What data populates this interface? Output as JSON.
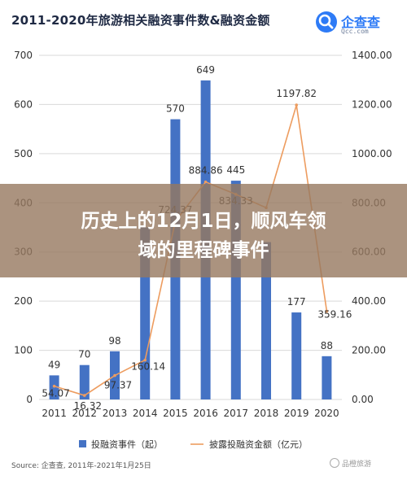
{
  "header": {
    "title": "2011-2020年旅游相关融资事件数&融资金额",
    "brand_name": "企查查",
    "brand_site": "Qcc.com"
  },
  "banner": {
    "line1": "历史上的12月1日，顺风车领",
    "line2": "域的里程碑事件"
  },
  "footer": {
    "source": "Source: 企查查, 2011年-2021年1月25日",
    "watermark": "品橙旅游"
  },
  "colors": {
    "bar": "#4472c4",
    "line": "#ed9c5f",
    "grid": "#d9d9d9",
    "text": "#333333"
  },
  "chart_data": {
    "type": "bar",
    "title": "2011-2020年旅游相关融资事件数&融资金额",
    "categories": [
      "2011",
      "2012",
      "2013",
      "2014",
      "2015",
      "2016",
      "2017",
      "2018",
      "2019",
      "2020"
    ],
    "ylim": [
      0,
      700
    ],
    "y_ticks": [
      "0",
      "100",
      "200",
      "300",
      "400",
      "500",
      "600",
      "700"
    ],
    "y2lim": [
      0,
      1400
    ],
    "y2_ticks": [
      "0.00",
      "200.00",
      "400.00",
      "600.00",
      "800.00",
      "1000.00",
      "1200.00",
      "1400.00"
    ],
    "grid": true,
    "legend_position": "bottom",
    "series": [
      {
        "name": "投融资事件（起）",
        "type": "bar",
        "axis": "left",
        "values": [
          49,
          70,
          98,
          350,
          570,
          649,
          445,
          320,
          177,
          88
        ],
        "labels": [
          "49",
          "70",
          "98",
          "",
          "570",
          "649",
          "445",
          "",
          "177",
          "88"
        ]
      },
      {
        "name": "披露投融资金额（亿元）",
        "type": "line",
        "axis": "right",
        "values": [
          54.07,
          16.32,
          97.37,
          160.14,
          724.37,
          884.86,
          834.33,
          780,
          1197.82,
          359.16
        ],
        "labels": [
          "54.07",
          "16.32",
          "97.37",
          "160.14",
          "724.37",
          "884.86",
          "834.33",
          "",
          "1197.82",
          "359.16"
        ]
      }
    ]
  }
}
